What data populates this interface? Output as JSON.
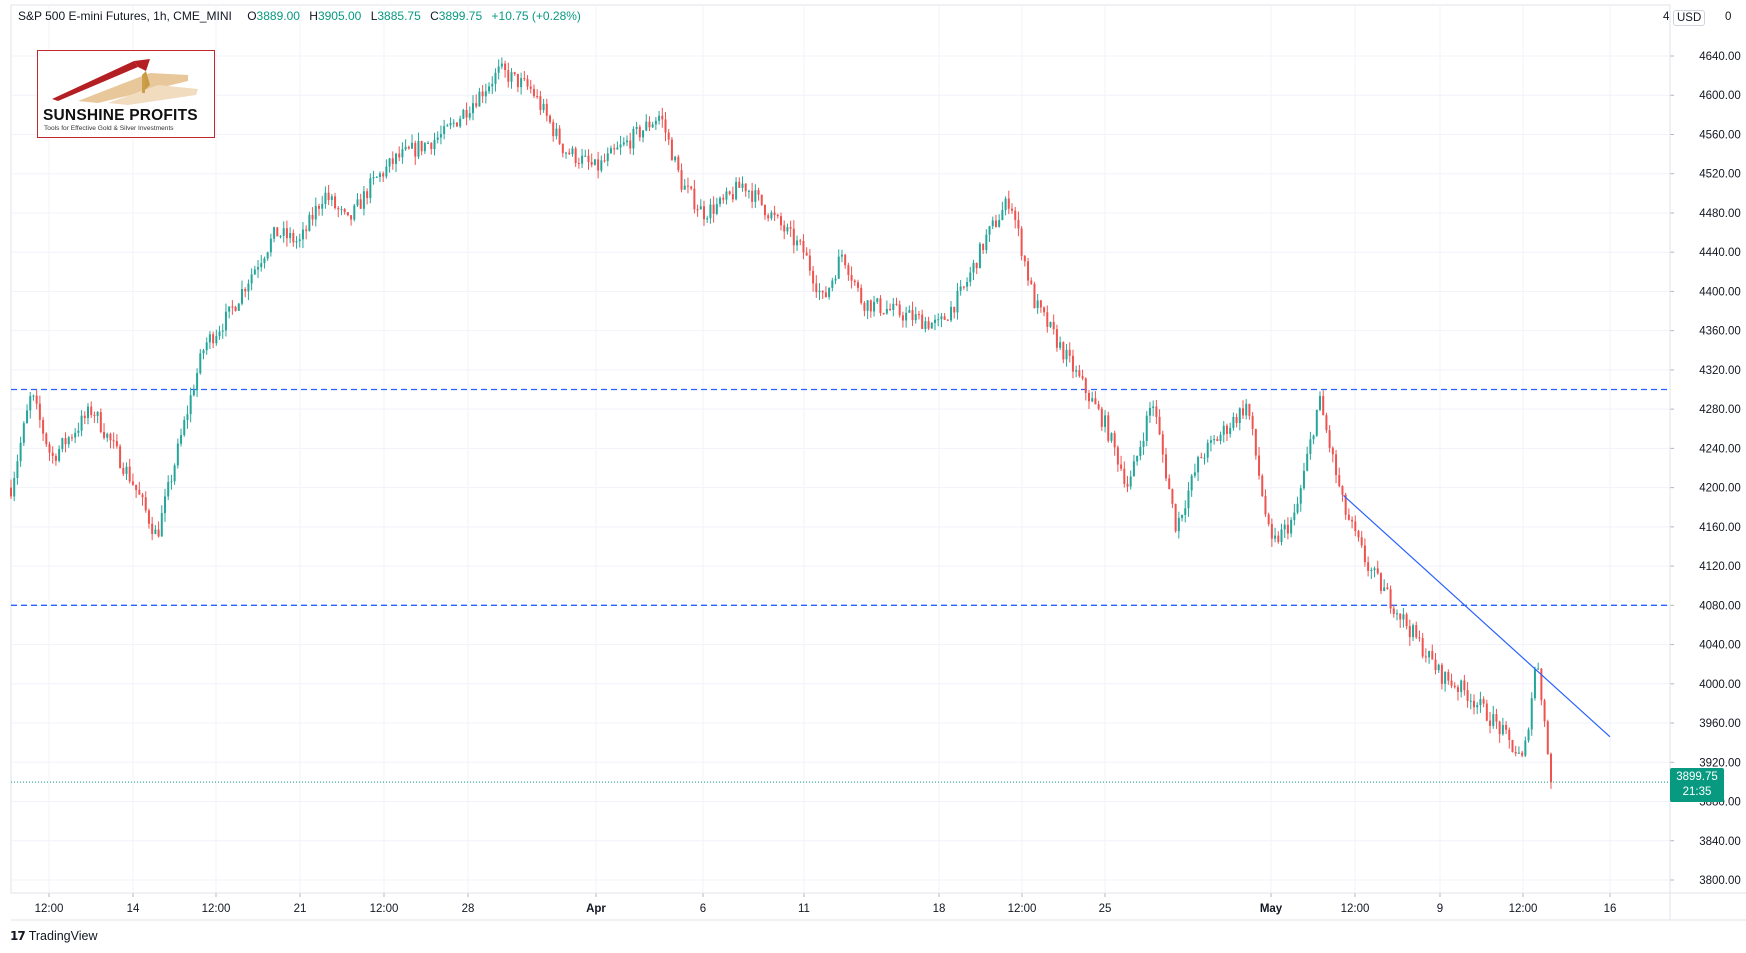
{
  "header": {
    "symbol": "S&P 500 E-mini Futures, 1h, CME_MINI",
    "open_label": "O",
    "open": "3889.00",
    "high_label": "H",
    "high": "3905.00",
    "low_label": "L",
    "low": "3885.75",
    "close_label": "C",
    "close": "3899.75",
    "change": "+10.75 (+0.28%)"
  },
  "logo": {
    "brand": "SUNSHINE PROFITS",
    "tagline": "Tools for Effective Gold & Silver Investments"
  },
  "footer": {
    "mark": "17",
    "brand": "TradingView"
  },
  "scale": {
    "currency_button": "USD",
    "top_left_digit": "4",
    "top_right_digit": "0"
  },
  "last_price": {
    "value": "3899.75",
    "countdown": "21:35"
  },
  "colors": {
    "up": "#26a69a",
    "down": "#ef5350",
    "level_line": "#2962ff",
    "trend_line": "#2962ff",
    "last_price_line": "#089981",
    "grid": "#f0f3fa"
  },
  "chart_data": {
    "type": "candlestick",
    "title": "S&P 500 E-mini Futures, 1h, CME_MINI",
    "ylim": [
      3780,
      4660
    ],
    "y_ticks": [
      3800,
      3840,
      3880,
      3920,
      3960,
      4000,
      4040,
      4080,
      4120,
      4160,
      4200,
      4240,
      4280,
      4320,
      4360,
      4400,
      4440,
      4480,
      4520,
      4560,
      4600,
      4640
    ],
    "x_labels": [
      "12:00",
      "14",
      "12:00",
      "21",
      "12:00",
      "28",
      "Apr",
      "6",
      "11",
      "18",
      "12:00",
      "25",
      "May",
      "12:00",
      "9",
      "12:00",
      "16"
    ],
    "x_label_bold": [
      "Apr",
      "May"
    ],
    "grid": true,
    "horizontal_levels": [
      4300,
      4080
    ],
    "last_price": 3899.75,
    "trend_line": {
      "from": {
        "x": "2022-05-05",
        "y": 4192
      },
      "to": {
        "x": "2022-05-16",
        "y": 3946
      }
    },
    "price_path": [
      {
        "x": "2022-03-11",
        "y": 4200
      },
      {
        "x": "2022-03-11 12:00",
        "y": 4295
      },
      {
        "x": "2022-03-12",
        "y": 4230
      },
      {
        "x": "2022-03-13",
        "y": 4280
      },
      {
        "x": "2022-03-14",
        "y": 4205
      },
      {
        "x": "2022-03-15",
        "y": 4150
      },
      {
        "x": "2022-03-16",
        "y": 4250
      },
      {
        "x": "2022-03-16 12:00",
        "y": 4300
      },
      {
        "x": "2022-03-17",
        "y": 4345
      },
      {
        "x": "2022-03-18",
        "y": 4375
      },
      {
        "x": "2022-03-19",
        "y": 4420
      },
      {
        "x": "2022-03-20",
        "y": 4460
      },
      {
        "x": "2022-03-21",
        "y": 4450
      },
      {
        "x": "2022-03-22",
        "y": 4500
      },
      {
        "x": "2022-03-23",
        "y": 4470
      },
      {
        "x": "2022-03-24",
        "y": 4510
      },
      {
        "x": "2022-03-25",
        "y": 4535
      },
      {
        "x": "2022-03-27",
        "y": 4560
      },
      {
        "x": "2022-03-29",
        "y": 4625
      },
      {
        "x": "2022-03-30",
        "y": 4605
      },
      {
        "x": "2022-03-31",
        "y": 4545
      },
      {
        "x": "2022-04-01",
        "y": 4525
      },
      {
        "x": "2022-04-04",
        "y": 4580
      },
      {
        "x": "2022-04-05",
        "y": 4510
      },
      {
        "x": "2022-04-06",
        "y": 4480
      },
      {
        "x": "2022-04-07",
        "y": 4490
      },
      {
        "x": "2022-04-08",
        "y": 4510
      },
      {
        "x": "2022-04-11",
        "y": 4440
      },
      {
        "x": "2022-04-12",
        "y": 4390
      },
      {
        "x": "2022-04-13",
        "y": 4440
      },
      {
        "x": "2022-04-14",
        "y": 4390
      },
      {
        "x": "2022-04-18",
        "y": 4365
      },
      {
        "x": "2022-04-19",
        "y": 4400
      },
      {
        "x": "2022-04-20",
        "y": 4455
      },
      {
        "x": "2022-04-21",
        "y": 4495
      },
      {
        "x": "2022-04-22",
        "y": 4390
      },
      {
        "x": "2022-04-25",
        "y": 4265
      },
      {
        "x": "2022-04-26",
        "y": 4200
      },
      {
        "x": "2022-04-27",
        "y": 4290
      },
      {
        "x": "2022-04-28",
        "y": 4160
      },
      {
        "x": "2022-04-29",
        "y": 4230
      },
      {
        "x": "2022-05-01",
        "y": 4285
      },
      {
        "x": "2022-05-02",
        "y": 4140
      },
      {
        "x": "2022-05-03",
        "y": 4170
      },
      {
        "x": "2022-05-04",
        "y": 4290
      },
      {
        "x": "2022-05-05",
        "y": 4180
      },
      {
        "x": "2022-05-06",
        "y": 4120
      },
      {
        "x": "2022-05-09",
        "y": 4010
      },
      {
        "x": "2022-05-10",
        "y": 3990
      },
      {
        "x": "2022-05-11",
        "y": 3960
      },
      {
        "x": "2022-05-12",
        "y": 3920
      },
      {
        "x": "2022-05-12 12:00",
        "y": 4030
      },
      {
        "x": "2022-05-13",
        "y": 3899.75
      }
    ]
  }
}
